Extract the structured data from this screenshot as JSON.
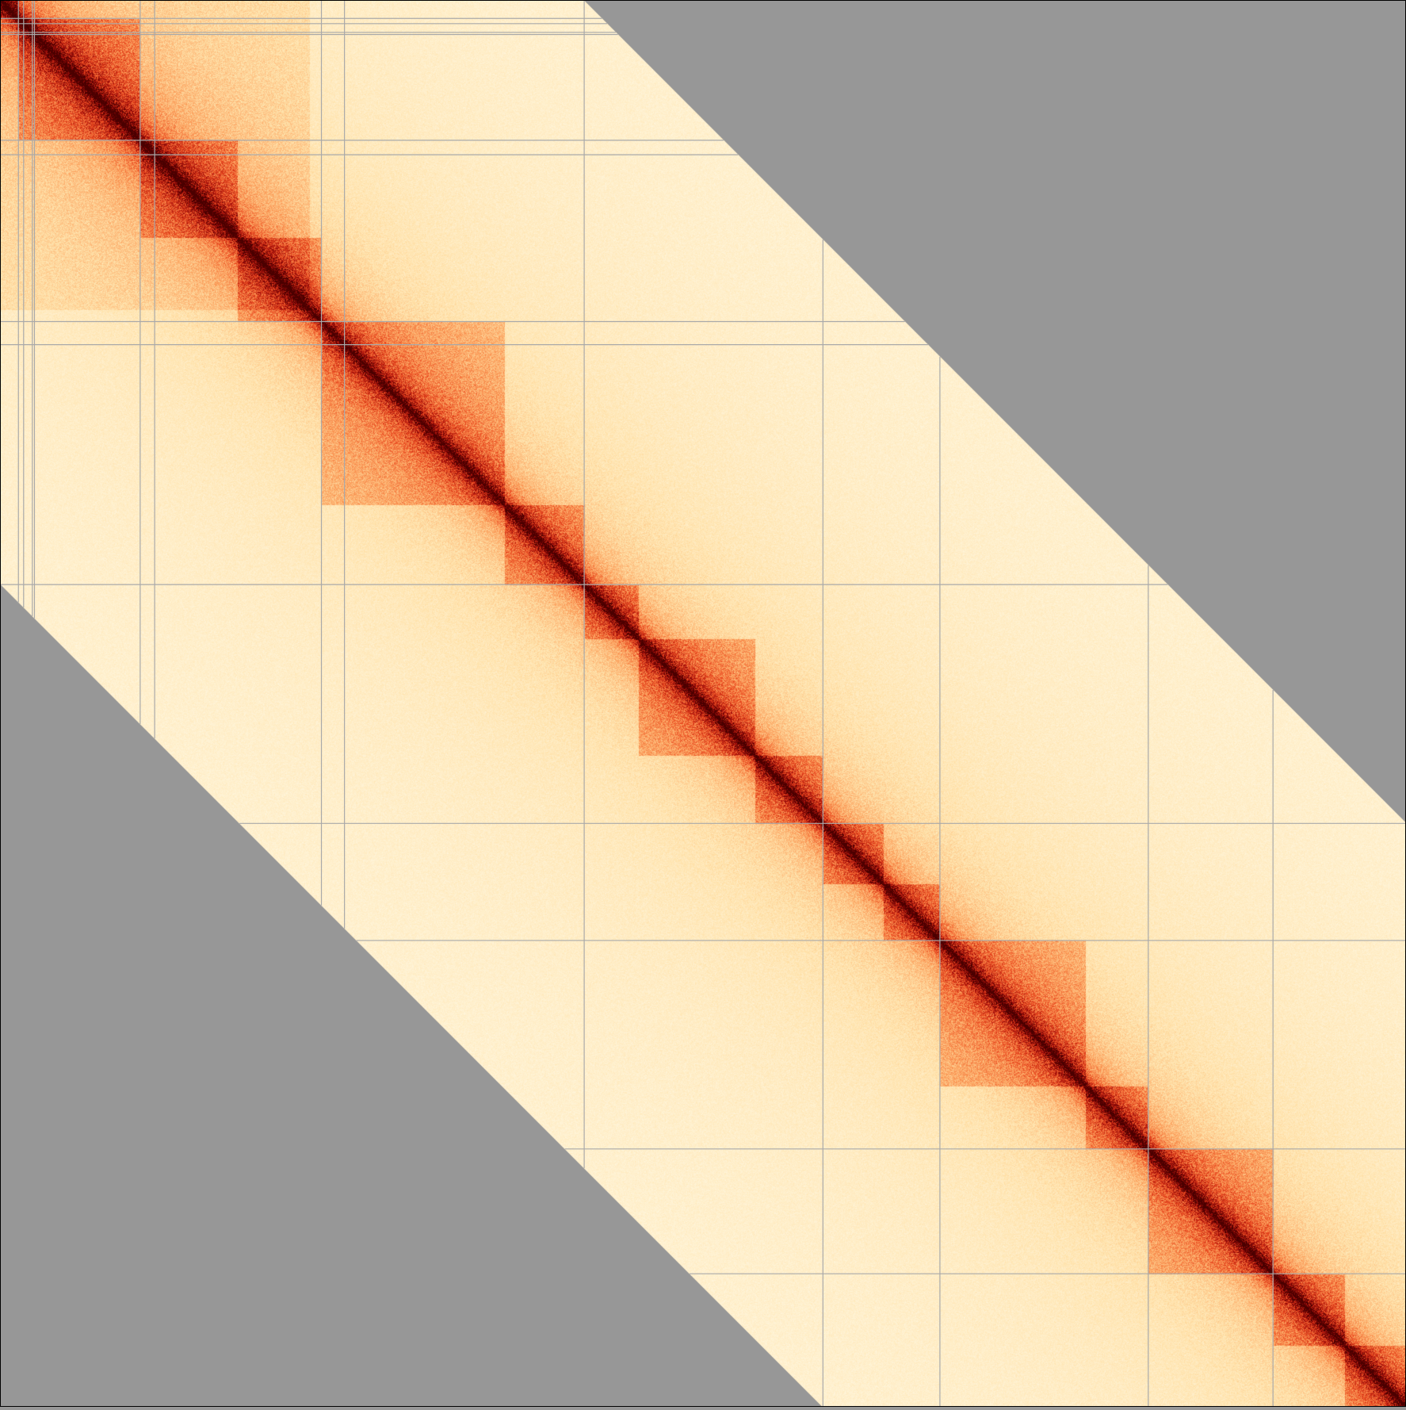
{
  "chart_data": {
    "type": "heatmap",
    "title": "",
    "xlabel": "",
    "ylabel": "",
    "background_color": "#979797",
    "grid_line_color": "#a9a9a9",
    "colormap": [
      "#fffbe9",
      "#ffe1a8",
      "#fca05c",
      "#e9481f",
      "#a00c0a",
      "#4a0000"
    ],
    "matrix_extent": [
      0,
      1
    ],
    "band_half_width": 0.415,
    "scaffold_boundaries": [
      0.0131,
      0.0168,
      0.023,
      0.0245,
      0.0997,
      0.11,
      0.2286,
      0.245,
      0.4155,
      0.5853,
      0.6685,
      0.8167,
      0.9054
    ],
    "domain_boundaries": [
      0.0131,
      0.0997,
      0.169,
      0.2286,
      0.359,
      0.4155,
      0.454,
      0.537,
      0.5853,
      0.628,
      0.6685,
      0.772,
      0.8167,
      0.9054,
      0.9565,
      1.0
    ],
    "decay_exponent": 0.55,
    "noise_level": 0.28
  }
}
